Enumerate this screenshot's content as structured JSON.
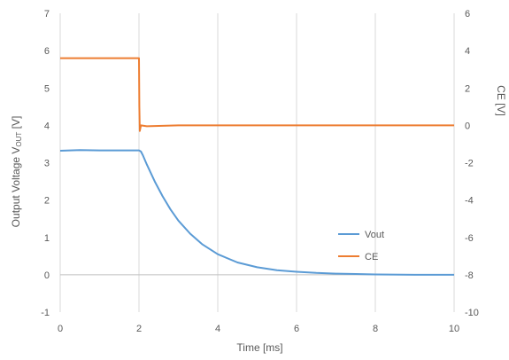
{
  "chart_data": {
    "type": "line",
    "xlabel": "Time [ms]",
    "ylabel_left": {
      "prefix": "Output Voltage V",
      "subscript": "OUT",
      "suffix": " [V]"
    },
    "ylabel_right": "CE [V]",
    "xlim": [
      0,
      10
    ],
    "ylim_left": [
      -1,
      7
    ],
    "ylim_right": [
      -10,
      6
    ],
    "x_ticks": [
      0,
      2,
      4,
      6,
      8,
      10
    ],
    "y_ticks_left": [
      -1,
      0,
      1,
      2,
      3,
      4,
      5,
      6,
      7
    ],
    "y_ticks_right": [
      -10,
      -8,
      -6,
      -4,
      -2,
      0,
      2,
      4,
      6
    ],
    "grid": "vertical",
    "legend_position": "lower-right-inside",
    "series": [
      {
        "name": "Vout",
        "axis": "left",
        "color": "#5B9BD5",
        "x": [
          0,
          0.5,
          1,
          1.5,
          2,
          2.05,
          2.1,
          2.2,
          2.4,
          2.6,
          2.8,
          3,
          3.3,
          3.6,
          4,
          4.5,
          5,
          5.5,
          6,
          6.5,
          7,
          7.5,
          8,
          9,
          10
        ],
        "y": [
          3.32,
          3.34,
          3.33,
          3.33,
          3.33,
          3.3,
          3.2,
          2.95,
          2.5,
          2.1,
          1.75,
          1.45,
          1.1,
          0.82,
          0.55,
          0.33,
          0.2,
          0.12,
          0.08,
          0.05,
          0.03,
          0.02,
          0.01,
          0.0,
          0.0
        ]
      },
      {
        "name": "CE",
        "axis": "right",
        "color": "#ED7D31",
        "x": [
          0,
          0.5,
          1,
          1.5,
          2,
          2.01,
          2.02,
          2.05,
          2.2,
          3,
          4,
          5,
          6,
          7,
          8,
          9,
          10
        ],
        "y": [
          3.6,
          3.6,
          3.6,
          3.6,
          3.6,
          1.0,
          -0.3,
          0,
          -0.05,
          0,
          0,
          0,
          0,
          0,
          0,
          0,
          0
        ]
      }
    ]
  }
}
